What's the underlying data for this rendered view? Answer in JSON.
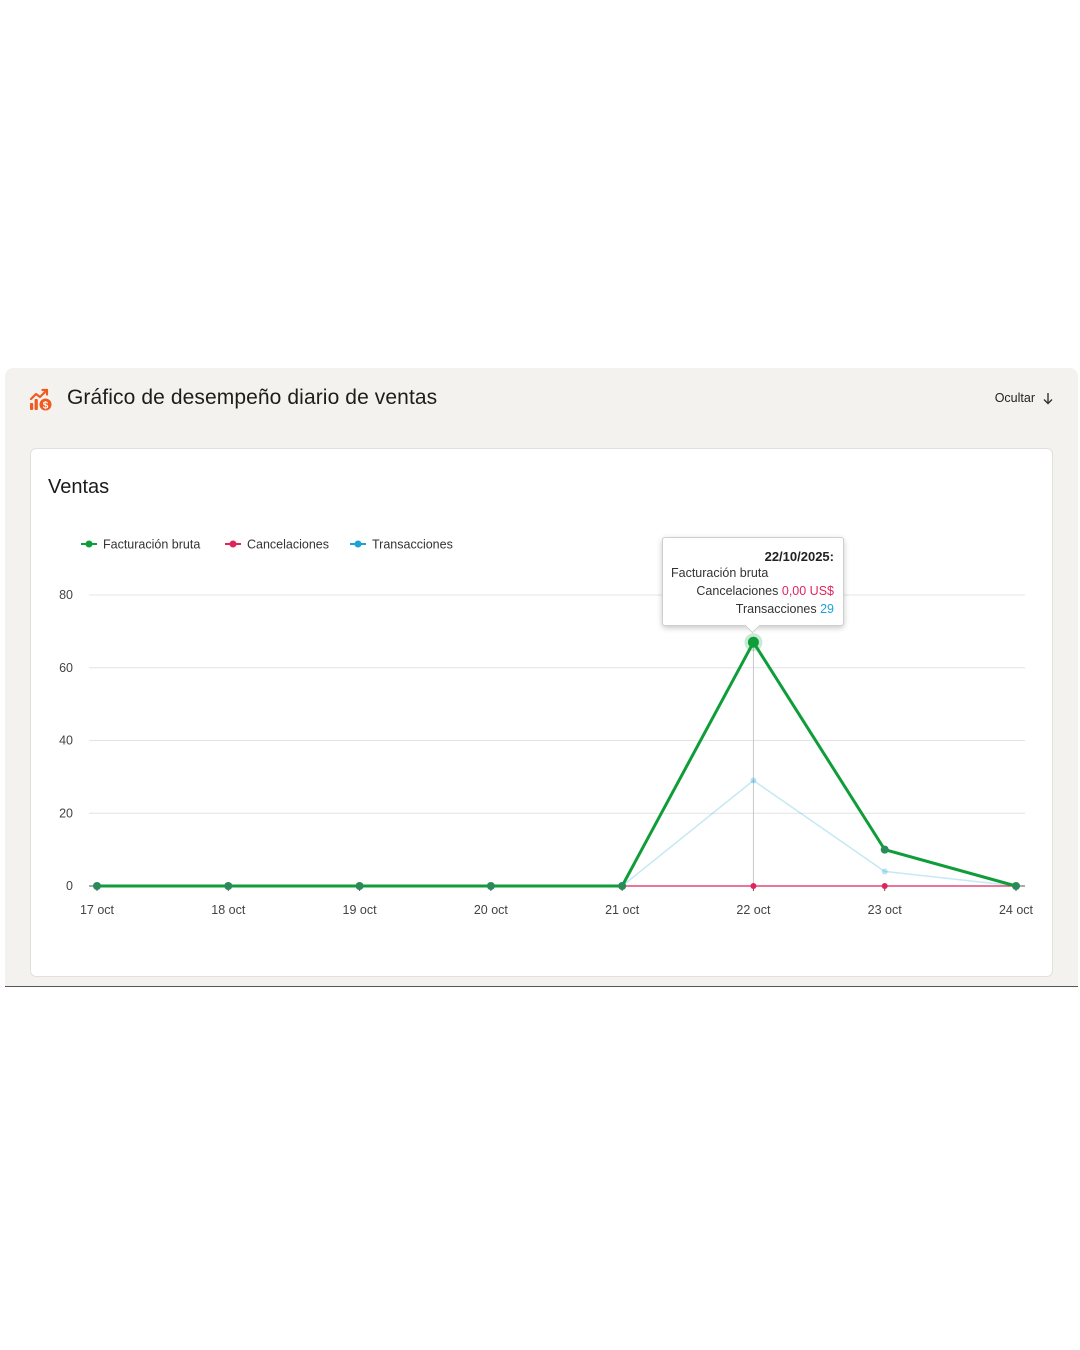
{
  "panel": {
    "title": "Gráfico de desempeño diario de ventas",
    "icon": "sales-chart-icon",
    "hide_label": "Ocultar",
    "hide_icon": "arrow-down-icon",
    "accent_color": "#f05a1e"
  },
  "card": {
    "title": "Ventas"
  },
  "tooltip": {
    "date": "22/10/2025:",
    "gross_label": "Facturación bruta",
    "cancel_label": "Cancelaciones",
    "cancel_value": "0,00 US$",
    "trans_label": "Transacciones",
    "trans_value": "29"
  },
  "chart_data": {
    "type": "line",
    "x": [
      "17 oct",
      "18 oct",
      "19 oct",
      "20 oct",
      "21 oct",
      "22 oct",
      "23 oct",
      "24 oct"
    ],
    "ylim": [
      0,
      80
    ],
    "yticks": [
      0,
      20,
      40,
      60,
      80
    ],
    "grid": true,
    "legend": "top-left",
    "highlighted_index": 5,
    "series": [
      {
        "name": "Facturación bruta",
        "color": "#0f9d3a",
        "values": [
          0,
          0,
          0,
          0,
          0,
          67,
          10,
          0
        ]
      },
      {
        "name": "Cancelaciones",
        "color": "#e0245e",
        "values": [
          0,
          0,
          0,
          0,
          0,
          0,
          0,
          0
        ]
      },
      {
        "name": "Transacciones",
        "color": "#1aa3d9",
        "faded": true,
        "values": [
          0,
          0,
          0,
          0,
          0,
          29,
          4,
          0
        ]
      }
    ]
  }
}
